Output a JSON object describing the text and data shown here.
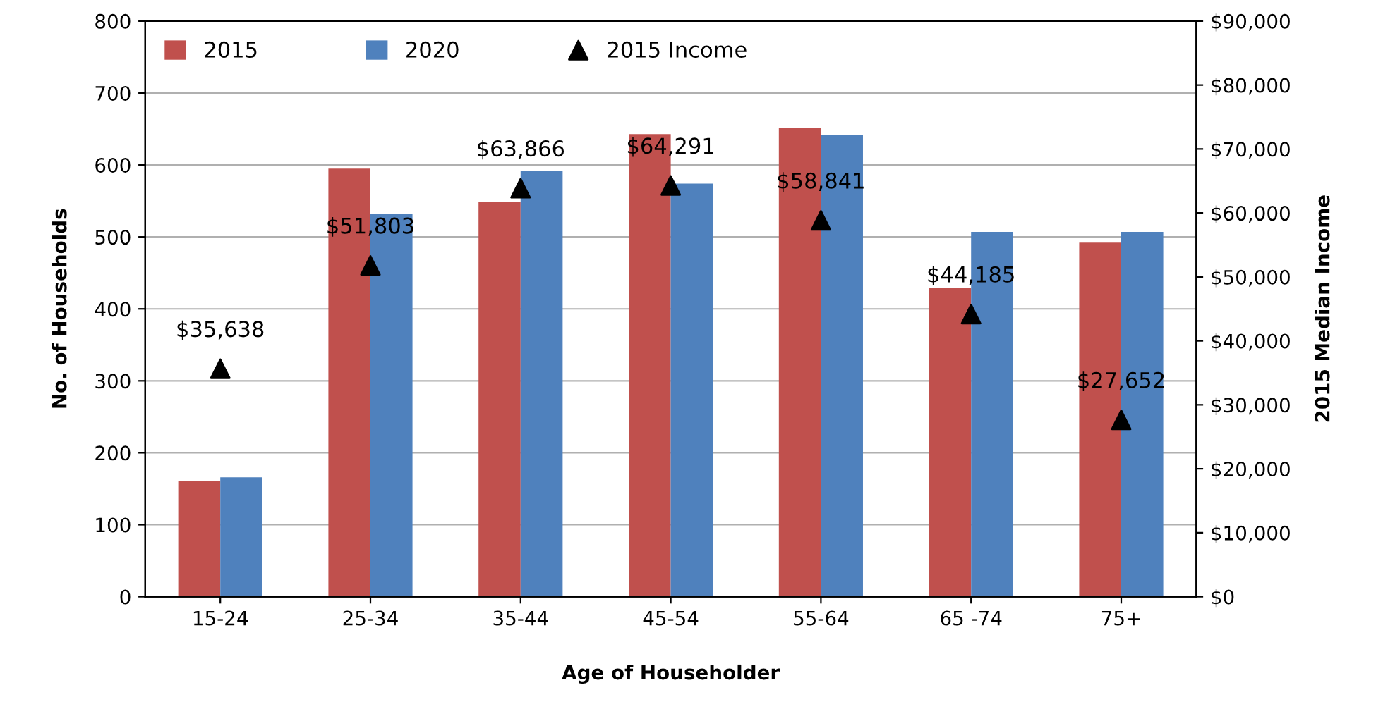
{
  "chart_data": {
    "type": "bar",
    "xlabel": "Age of Householder",
    "ylabel": "No. of Households",
    "y2label": "2015 Median Income",
    "categories": [
      "15-24",
      "25-34",
      "35-44",
      "45-54",
      "55-64",
      "65 -74",
      "75+"
    ],
    "series": [
      {
        "name": "2015",
        "color": "#c0504d",
        "values": [
          161,
          595,
          549,
          643,
          652,
          429,
          492
        ]
      },
      {
        "name": "2020",
        "color": "#4f81bd",
        "values": [
          166,
          532,
          592,
          574,
          642,
          507,
          507
        ]
      },
      {
        "name": "2015 Income",
        "type": "scatter",
        "axis": "y2",
        "color": "#000000",
        "marker": "triangle",
        "values": [
          35638,
          51803,
          63866,
          64291,
          58841,
          44185,
          27652
        ],
        "value_labels": [
          "$35,638",
          "$51,803",
          "$63,866",
          "$64,291",
          "$58,841",
          "$44,185",
          "$27,652"
        ]
      }
    ],
    "ylim": [
      0,
      800
    ],
    "yticks": [
      0,
      100,
      200,
      300,
      400,
      500,
      600,
      700,
      800
    ],
    "y2lim": [
      0,
      90000
    ],
    "y2ticks": [
      {
        "value": 0,
        "label": "$0"
      },
      {
        "value": 10000,
        "label": "$10,000"
      },
      {
        "value": 20000,
        "label": "$20,000"
      },
      {
        "value": 30000,
        "label": "$30,000"
      },
      {
        "value": 40000,
        "label": "$40,000"
      },
      {
        "value": 50000,
        "label": "$50,000"
      },
      {
        "value": 60000,
        "label": "$60,000"
      },
      {
        "value": 70000,
        "label": "$70,000"
      },
      {
        "value": 80000,
        "label": "$80,000"
      },
      {
        "value": 90000,
        "label": "$90,000"
      }
    ],
    "grid": "y",
    "legend": "top left"
  }
}
